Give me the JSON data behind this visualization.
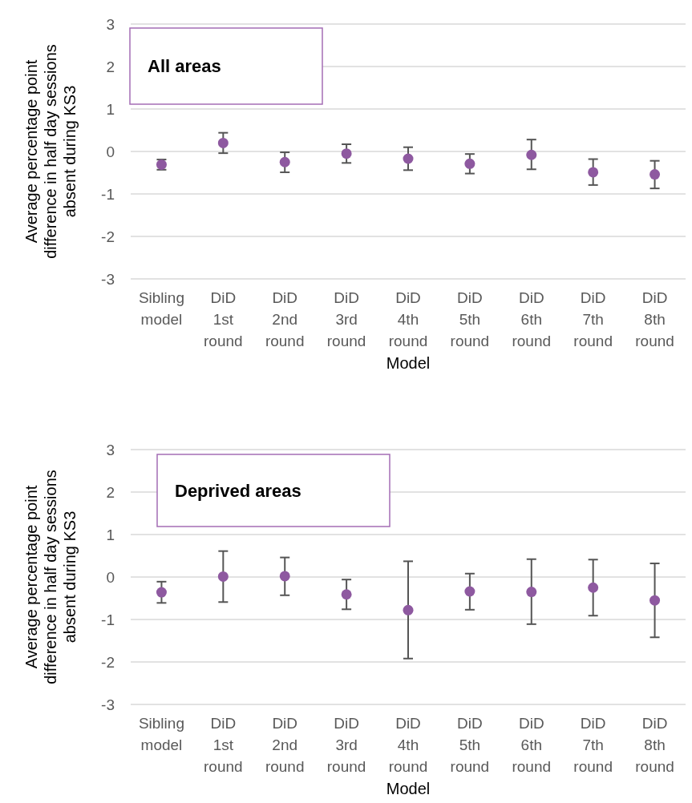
{
  "chart_data": [
    {
      "type": "scatter",
      "annotations": [
        "All areas"
      ],
      "xlabel": "Model",
      "ylabel": "Average percentage point difference in half day sessions absent during KS3",
      "categories": [
        "Sibling model",
        "DiD 1st round",
        "DiD 2nd round",
        "DiD 3rd round",
        "DiD 4th round",
        "DiD 5th round",
        "DiD 6th round",
        "DiD 7th round",
        "DiD 8th round"
      ],
      "series": [
        {
          "color": "#8e59a0",
          "values": [
            -0.31,
            0.2,
            -0.25,
            -0.05,
            -0.17,
            -0.29,
            -0.08,
            -0.49,
            -0.54
          ],
          "errors": [
            [
              -0.43,
              -0.19
            ],
            [
              -0.04,
              0.44
            ],
            [
              -0.49,
              -0.02
            ],
            [
              -0.27,
              0.17
            ],
            [
              -0.44,
              0.1
            ],
            [
              -0.52,
              -0.06
            ],
            [
              -0.42,
              0.28
            ],
            [
              -0.79,
              -0.18
            ],
            [
              -0.87,
              -0.22
            ]
          ]
        }
      ],
      "ylim": [
        -3,
        3
      ],
      "yticks": [
        -3,
        -2,
        -1,
        0,
        1,
        2,
        3
      ],
      "grid": "y",
      "marker": "circle"
    },
    {
      "type": "scatter",
      "annotations": [
        "Deprived areas"
      ],
      "xlabel": "Model",
      "ylabel": "Average percentage point difference in half day sessions absent during KS3",
      "categories": [
        "Sibling model",
        "DiD 1st round",
        "DiD 2nd round",
        "DiD 3rd round",
        "DiD 4th round",
        "DiD 5th round",
        "DiD 6th round",
        "DiD 7th round",
        "DiD 8th round"
      ],
      "series": [
        {
          "color": "#8e59a0",
          "values": [
            -0.36,
            0.01,
            0.02,
            -0.41,
            -0.78,
            -0.34,
            -0.35,
            -0.25,
            -0.55
          ],
          "errors": [
            [
              -0.61,
              -0.11
            ],
            [
              -0.59,
              0.61
            ],
            [
              -0.43,
              0.46
            ],
            [
              -0.76,
              -0.06
            ],
            [
              -1.92,
              0.37
            ],
            [
              -0.77,
              0.08
            ],
            [
              -1.11,
              0.42
            ],
            [
              -0.91,
              0.41
            ],
            [
              -1.42,
              0.32
            ]
          ]
        }
      ],
      "ylim": [
        -3,
        3
      ],
      "yticks": [
        -3,
        -2,
        -1,
        0,
        1,
        2,
        3
      ],
      "grid": "y",
      "marker": "circle"
    }
  ]
}
